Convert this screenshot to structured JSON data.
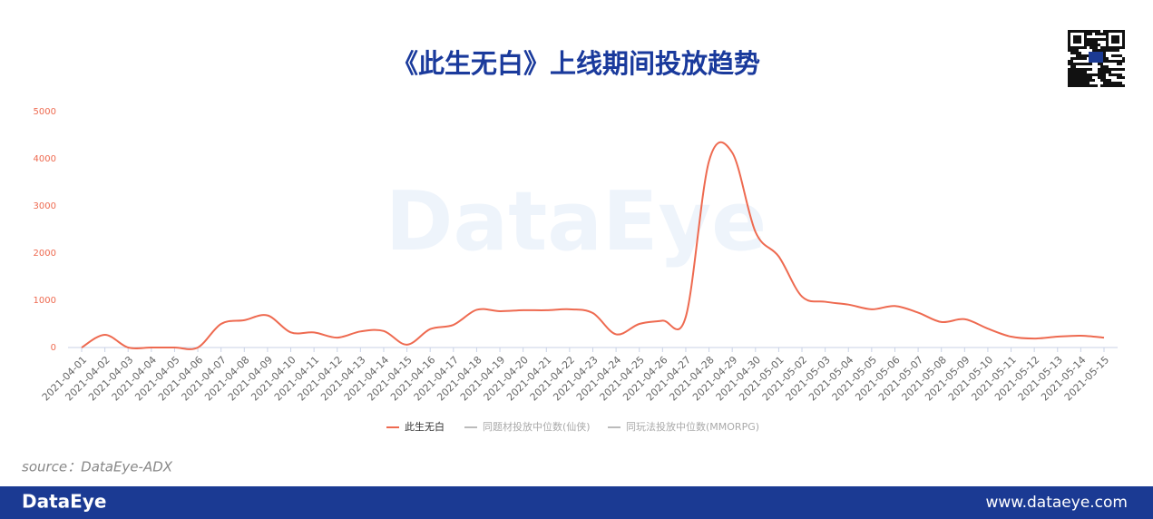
{
  "chart_data": {
    "type": "line",
    "title": "《此生无白》上线期间投放趋势",
    "categories": [
      "2021-04-01",
      "2021-04-02",
      "2021-04-03",
      "2021-04-04",
      "2021-04-05",
      "2021-04-06",
      "2021-04-07",
      "2021-04-08",
      "2021-04-09",
      "2021-04-10",
      "2021-04-11",
      "2021-04-12",
      "2021-04-13",
      "2021-04-14",
      "2021-04-15",
      "2021-04-16",
      "2021-04-17",
      "2021-04-18",
      "2021-04-19",
      "2021-04-20",
      "2021-04-21",
      "2021-04-22",
      "2021-04-23",
      "2021-04-24",
      "2021-04-25",
      "2021-04-26",
      "2021-04-27",
      "2021-04-28",
      "2021-04-29",
      "2021-04-30",
      "2021-05-01",
      "2021-05-02",
      "2021-05-03",
      "2021-05-04",
      "2021-05-05",
      "2021-05-06",
      "2021-05-07",
      "2021-05-08",
      "2021-05-09",
      "2021-05-10",
      "2021-05-11",
      "2021-05-12",
      "2021-05-13",
      "2021-05-14",
      "2021-05-15"
    ],
    "series": [
      {
        "name": "此生无白",
        "color": "#ee6a50",
        "values": [
          0,
          270,
          0,
          0,
          0,
          0,
          500,
          580,
          680,
          320,
          320,
          210,
          340,
          350,
          60,
          390,
          480,
          800,
          770,
          790,
          790,
          810,
          730,
          280,
          500,
          570,
          650,
          3950,
          4130,
          2450,
          1930,
          1080,
          970,
          910,
          810,
          880,
          740,
          540,
          600,
          400,
          230,
          190,
          230,
          250,
          210
        ]
      },
      {
        "name": "同题材投放中位数(仙侠)",
        "color": "#bbbbbb",
        "values": [
          null,
          null,
          null,
          null,
          null,
          null,
          null,
          null,
          null,
          null,
          null,
          null,
          null,
          null,
          null,
          null,
          null,
          null,
          null,
          null,
          null,
          null,
          null,
          null,
          null,
          null,
          null,
          null,
          null,
          null,
          null,
          null,
          null,
          null,
          null,
          null,
          null,
          null,
          null,
          null,
          null,
          null,
          null,
          null,
          null
        ]
      },
      {
        "name": "同玩法投放中位数(MMORPG)",
        "color": "#bbbbbb",
        "values": [
          null,
          null,
          null,
          null,
          null,
          null,
          null,
          null,
          null,
          null,
          null,
          null,
          null,
          null,
          null,
          null,
          null,
          null,
          null,
          null,
          null,
          null,
          null,
          null,
          null,
          null,
          null,
          null,
          null,
          null,
          null,
          null,
          null,
          null,
          null,
          null,
          null,
          null,
          null,
          null,
          null,
          null,
          null,
          null,
          null
        ]
      }
    ],
    "ylim": [
      0,
      5000
    ],
    "yticks": [
      0,
      1000,
      2000,
      3000,
      4000,
      5000
    ],
    "grid": false,
    "legend": "bottom",
    "smooth": true
  },
  "watermark": "DataEye",
  "source": "source：DataEye-ADX",
  "footer": {
    "brand": "DataEye",
    "url": "www.dataeye.com"
  }
}
